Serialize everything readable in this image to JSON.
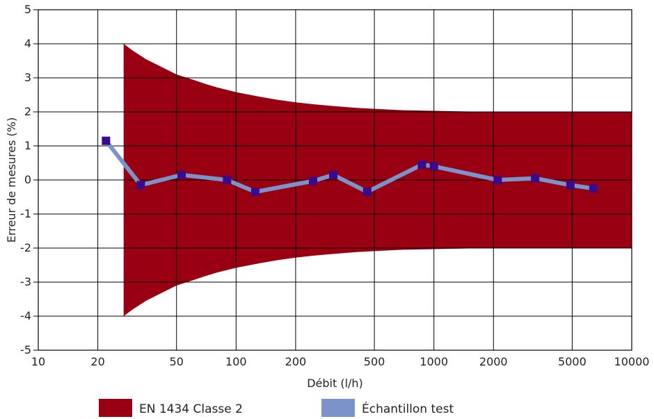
{
  "chart_data": {
    "type": "line",
    "xscale": "log",
    "xlim": [
      10,
      10000
    ],
    "ylim": [
      -5,
      5
    ],
    "x_ticks": [
      10,
      20,
      50,
      100,
      200,
      500,
      1000,
      2000,
      5000,
      10000
    ],
    "x_tick_labels": [
      "10",
      "20",
      "50",
      "100",
      "200",
      "500",
      "1000",
      "2000",
      "5000",
      "10000"
    ],
    "y_ticks": [
      5,
      4,
      3,
      2,
      1,
      0,
      -1,
      -2,
      -3,
      -4,
      -5
    ],
    "y_tick_labels": [
      "5",
      "4",
      "3",
      "2",
      "1",
      "0",
      "-1",
      "-2",
      "-3",
      "-4",
      "-5"
    ],
    "xlabel": "Débit (l/h)",
    "ylabel": "Erreur de mesures (%)",
    "grid": true,
    "legend_position": "bottom",
    "band": {
      "name": "EN 1434 Classe 2",
      "color": "#990012",
      "x": [
        27,
        30,
        35,
        40,
        50,
        60,
        70,
        80,
        100,
        130,
        160,
        200,
        250,
        300,
        400,
        500,
        700,
        1000,
        1500,
        2000,
        3000,
        5000,
        10000
      ],
      "upper": [
        4.0,
        3.8,
        3.55,
        3.38,
        3.1,
        2.95,
        2.82,
        2.72,
        2.58,
        2.45,
        2.36,
        2.28,
        2.22,
        2.18,
        2.12,
        2.09,
        2.05,
        2.03,
        2.01,
        2.0,
        2.0,
        2.0,
        2.0
      ],
      "lower": [
        -4.0,
        -3.8,
        -3.55,
        -3.38,
        -3.1,
        -2.95,
        -2.82,
        -2.72,
        -2.58,
        -2.45,
        -2.36,
        -2.28,
        -2.22,
        -2.18,
        -2.12,
        -2.09,
        -2.05,
        -2.03,
        -2.01,
        -2.0,
        -2.0,
        -2.0,
        -2.0
      ]
    },
    "series": [
      {
        "name": "Échantillon test",
        "line_color": "#7b93c8",
        "marker_color": "#3a0a8c",
        "x": [
          22,
          33,
          53,
          90,
          125,
          245,
          310,
          460,
          870,
          1000,
          2100,
          3250,
          4900,
          6400
        ],
        "y": [
          1.15,
          -0.15,
          0.15,
          0.0,
          -0.35,
          -0.03,
          0.15,
          -0.35,
          0.45,
          0.4,
          0.0,
          0.05,
          -0.15,
          -0.25
        ]
      }
    ]
  }
}
